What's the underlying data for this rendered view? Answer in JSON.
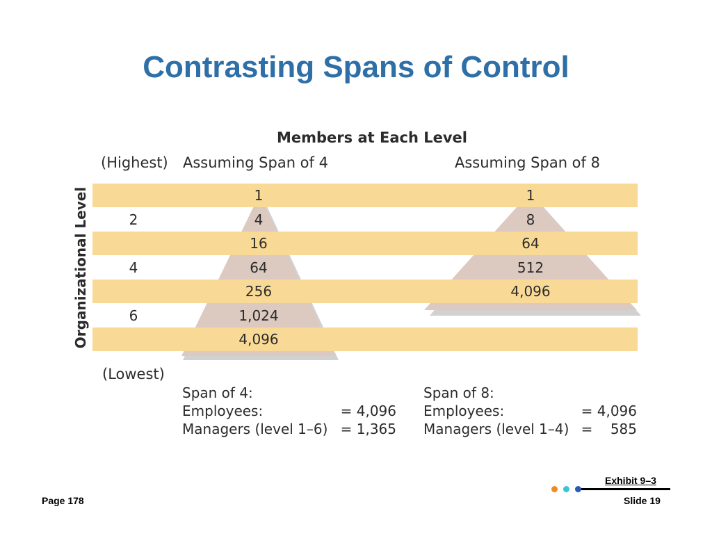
{
  "title": "Contrasting Spans of Control",
  "diagram": {
    "heading": "Members at Each Level",
    "highest_label": "(Highest)",
    "lowest_label": "(Lowest)",
    "axis_label": "Organizational Level",
    "span4_header": "Assuming Span of 4",
    "span8_header": "Assuming Span of 8",
    "level_numbers": [
      "2",
      "4",
      "6"
    ],
    "span4_values": [
      "1",
      "4",
      "16",
      "64",
      "256",
      "1,024",
      "4,096"
    ],
    "span8_values": [
      "1",
      "8",
      "64",
      "512",
      "4,096"
    ],
    "band_color": "#f8d995",
    "triangle_color": "#dcc9c0"
  },
  "summary4": {
    "title": "Span of 4:",
    "employees_label": "Employees:",
    "employees_value": "= 4,096",
    "managers_label": "Managers (level 1–6)",
    "managers_value": "= 1,365"
  },
  "summary8": {
    "title": "Span of 8:",
    "employees_label": "Employees:",
    "employees_value": "= 4,096",
    "managers_label": "Managers (level 1–4)",
    "managers_value": "=    585"
  },
  "footer": {
    "page": "Page 178",
    "exhibit": "Exhibit 9–3",
    "slide": "Slide 19",
    "dot_colors": [
      "#f08a24",
      "#3bc4d8",
      "#2b57b8"
    ]
  }
}
